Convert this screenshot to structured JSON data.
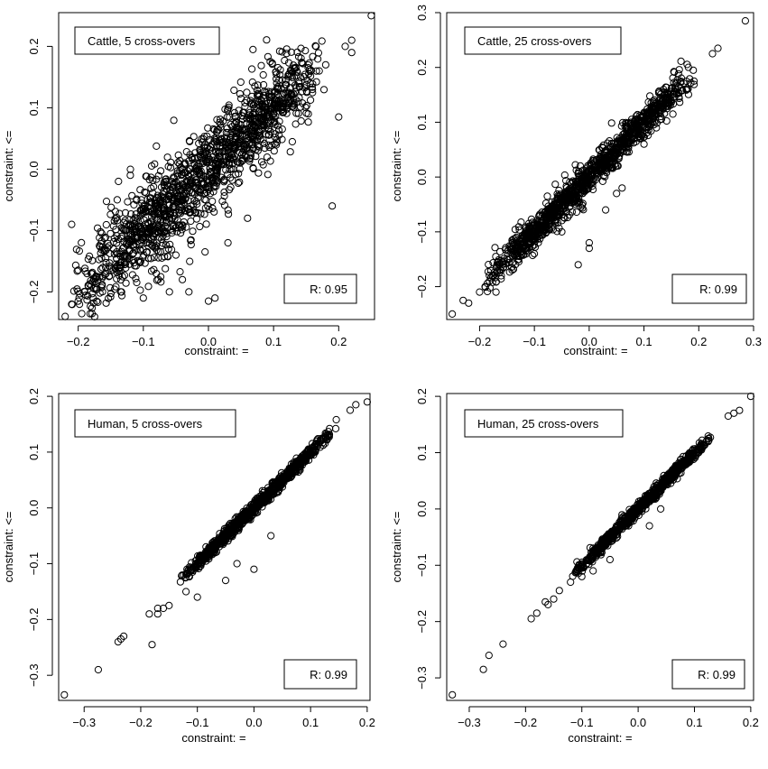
{
  "chart_data": [
    {
      "type": "scatter",
      "legend": "Cattle, 5 cross-overs",
      "annotation": "R: 0.95",
      "xlabel": "constraint: =",
      "ylabel": "constraint: <=",
      "xlim": [
        -0.23,
        0.255
      ],
      "ylim": [
        -0.245,
        0.255
      ],
      "xticks": [
        -0.2,
        -0.1,
        0.0,
        0.1,
        0.2
      ],
      "xtick_labels": [
        "−0.2",
        "−0.1",
        "0.0",
        "0.1",
        "0.2"
      ],
      "yticks": [
        -0.2,
        -0.1,
        0.0,
        0.1,
        0.2
      ],
      "ytick_labels": [
        "−0.2",
        "−0.1",
        "0.0",
        "0.1",
        "0.2"
      ],
      "main_band": {
        "x_range": [
          -0.22,
          0.18
        ],
        "slope": 1.0,
        "spread": 0.045,
        "n": 1400
      },
      "points": [
        [
          0.25,
          0.25
        ],
        [
          0.22,
          0.21
        ],
        [
          0.21,
          0.2
        ],
        [
          0.22,
          0.19
        ],
        [
          0.2,
          0.085
        ],
        [
          0.19,
          -0.06
        ],
        [
          0.17,
          0.16
        ],
        [
          0.18,
          0.17
        ],
        [
          -0.21,
          -0.09
        ],
        [
          -0.22,
          -0.24
        ],
        [
          -0.21,
          -0.22
        ],
        [
          -0.2,
          -0.215
        ],
        [
          -0.19,
          -0.2
        ],
        [
          -0.18,
          -0.19
        ],
        [
          0.05,
          0.115
        ],
        [
          -0.1,
          -0.21
        ],
        [
          -0.06,
          -0.2
        ],
        [
          -0.03,
          -0.2
        ],
        [
          0.0,
          -0.215
        ],
        [
          0.01,
          -0.21
        ],
        [
          -0.16,
          -0.13
        ],
        [
          -0.14,
          -0.05
        ],
        [
          -0.12,
          -0.01
        ],
        [
          -0.08,
          -0.17
        ],
        [
          -0.05,
          -0.14
        ],
        [
          0.03,
          -0.12
        ],
        [
          0.06,
          -0.08
        ],
        [
          -0.04,
          -0.18
        ]
      ]
    },
    {
      "type": "scatter",
      "legend": "Cattle, 25 cross-overs",
      "annotation": "R: 0.99",
      "xlabel": "constraint: =",
      "ylabel": "constraint: <=",
      "xlim": [
        -0.26,
        0.3
      ],
      "ylim": [
        -0.26,
        0.3
      ],
      "xticks": [
        -0.2,
        -0.1,
        0.0,
        0.1,
        0.2,
        0.3
      ],
      "xtick_labels": [
        "−0.2",
        "−0.1",
        "0.0",
        "0.1",
        "0.2",
        "0.3"
      ],
      "yticks": [
        -0.2,
        -0.1,
        0.0,
        0.1,
        0.2,
        0.3
      ],
      "ytick_labels": [
        "−0.2",
        "−0.1",
        "0.0",
        "0.1",
        "0.2",
        "0.3"
      ],
      "main_band": {
        "x_range": [
          -0.2,
          0.2
        ],
        "slope": 1.0,
        "spread": 0.018,
        "n": 1200
      },
      "points": [
        [
          0.285,
          0.285
        ],
        [
          0.235,
          0.235
        ],
        [
          0.225,
          0.225
        ],
        [
          0.19,
          0.195
        ],
        [
          -0.25,
          -0.25
        ],
        [
          -0.23,
          -0.225
        ],
        [
          -0.22,
          -0.23
        ],
        [
          -0.2,
          -0.21
        ],
        [
          -0.19,
          -0.2
        ],
        [
          -0.17,
          -0.21
        ],
        [
          -0.12,
          -0.12
        ],
        [
          -0.02,
          -0.16
        ],
        [
          0.0,
          -0.13
        ],
        [
          0.0,
          -0.12
        ],
        [
          0.05,
          -0.03
        ],
        [
          0.06,
          -0.02
        ],
        [
          -0.05,
          -0.1
        ],
        [
          -0.1,
          -0.14
        ],
        [
          0.03,
          -0.06
        ],
        [
          0.1,
          0.06
        ]
      ]
    },
    {
      "type": "scatter",
      "legend": "Human, 5 cross-overs",
      "annotation": "R: 0.99",
      "xlabel": "constraint: =",
      "ylabel": "constraint: <=",
      "xlim": [
        -0.345,
        0.205
      ],
      "ylim": [
        -0.345,
        0.205
      ],
      "xticks": [
        -0.3,
        -0.2,
        -0.1,
        0.0,
        0.1,
        0.2
      ],
      "xtick_labels": [
        "−0.3",
        "−0.2",
        "−0.1",
        "0.0",
        "0.1",
        "0.2"
      ],
      "yticks": [
        -0.3,
        -0.2,
        -0.1,
        0.0,
        0.1,
        0.2
      ],
      "ytick_labels": [
        "−0.3",
        "−0.2",
        "−0.1",
        "0.0",
        "0.1",
        "0.2"
      ],
      "main_band": {
        "x_range": [
          -0.14,
          0.15
        ],
        "slope": 1.0,
        "spread": 0.007,
        "n": 900
      },
      "points": [
        [
          0.2,
          0.19
        ],
        [
          0.18,
          0.185
        ],
        [
          0.17,
          0.175
        ],
        [
          -0.335,
          -0.335
        ],
        [
          -0.275,
          -0.29
        ],
        [
          -0.23,
          -0.23
        ],
        [
          -0.235,
          -0.235
        ],
        [
          -0.24,
          -0.24
        ],
        [
          -0.18,
          -0.245
        ],
        [
          -0.185,
          -0.19
        ],
        [
          -0.17,
          -0.18
        ],
        [
          -0.15,
          -0.175
        ],
        [
          -0.17,
          -0.19
        ],
        [
          -0.16,
          -0.18
        ],
        [
          -0.12,
          -0.15
        ],
        [
          -0.1,
          -0.16
        ],
        [
          -0.05,
          -0.13
        ],
        [
          0.0,
          -0.11
        ],
        [
          -0.03,
          -0.1
        ],
        [
          0.03,
          -0.05
        ]
      ]
    },
    {
      "type": "scatter",
      "legend": "Human, 25 cross-overs",
      "annotation": "R: 0.99",
      "xlabel": "constraint: =",
      "ylabel": "constraint: <=",
      "xlim": [
        -0.34,
        0.205
      ],
      "ylim": [
        -0.34,
        0.205
      ],
      "xticks": [
        -0.3,
        -0.2,
        -0.1,
        0.0,
        0.1,
        0.2
      ],
      "xtick_labels": [
        "−0.3",
        "−0.2",
        "−0.1",
        "0.0",
        "0.1",
        "0.2"
      ],
      "yticks": [
        -0.3,
        -0.2,
        -0.1,
        0.0,
        0.1,
        0.2
      ],
      "ytick_labels": [
        "−0.3",
        "−0.2",
        "−0.1",
        "0.0",
        "0.1",
        "0.2"
      ],
      "main_band": {
        "x_range": [
          -0.12,
          0.14
        ],
        "slope": 1.0,
        "spread": 0.006,
        "n": 850
      },
      "points": [
        [
          0.2,
          0.2
        ],
        [
          0.18,
          0.175
        ],
        [
          0.17,
          0.17
        ],
        [
          0.16,
          0.165
        ],
        [
          -0.33,
          -0.33
        ],
        [
          -0.275,
          -0.285
        ],
        [
          -0.265,
          -0.26
        ],
        [
          -0.24,
          -0.24
        ],
        [
          -0.19,
          -0.195
        ],
        [
          -0.18,
          -0.185
        ],
        [
          -0.165,
          -0.165
        ],
        [
          -0.16,
          -0.17
        ],
        [
          -0.15,
          -0.16
        ],
        [
          -0.14,
          -0.145
        ],
        [
          -0.12,
          -0.13
        ],
        [
          -0.1,
          -0.12
        ],
        [
          -0.08,
          -0.11
        ],
        [
          -0.05,
          -0.09
        ],
        [
          0.02,
          -0.03
        ],
        [
          0.04,
          0.0
        ]
      ]
    }
  ]
}
